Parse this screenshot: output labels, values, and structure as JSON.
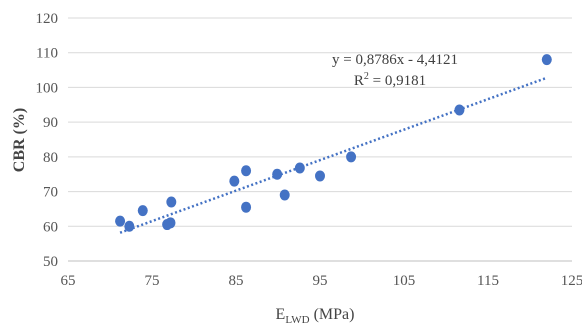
{
  "chart_data": {
    "type": "scatter",
    "title": "",
    "xlabel_main": "E",
    "xlabel_sub": "LWD",
    "xlabel_unit": " (MPa)",
    "ylabel": "CBR (%)",
    "xlim": [
      65,
      125
    ],
    "ylim": [
      50,
      120
    ],
    "xticks": [
      65,
      75,
      85,
      95,
      105,
      115,
      125
    ],
    "yticks": [
      50,
      60,
      70,
      80,
      90,
      100,
      110,
      120
    ],
    "grid": "horizontal",
    "marker_color": "#4472C4",
    "trendline_color": "#4472C4",
    "points": [
      {
        "x": 71.2,
        "y": 61.5
      },
      {
        "x": 72.3,
        "y": 60.0
      },
      {
        "x": 73.9,
        "y": 64.5
      },
      {
        "x": 76.8,
        "y": 60.5
      },
      {
        "x": 77.2,
        "y": 61.0
      },
      {
        "x": 77.3,
        "y": 67.0
      },
      {
        "x": 84.8,
        "y": 73.0
      },
      {
        "x": 86.2,
        "y": 76.0
      },
      {
        "x": 86.2,
        "y": 65.5
      },
      {
        "x": 89.9,
        "y": 75.0
      },
      {
        "x": 90.8,
        "y": 69.0
      },
      {
        "x": 92.6,
        "y": 76.8
      },
      {
        "x": 95.0,
        "y": 74.5
      },
      {
        "x": 98.7,
        "y": 80.0
      },
      {
        "x": 111.6,
        "y": 93.5
      },
      {
        "x": 122.0,
        "y": 108.0
      }
    ],
    "trendline": {
      "slope": 0.8786,
      "intercept": -4.4121,
      "x_range": [
        71.2,
        122.0
      ],
      "equation_label": "y = 0,8786x - 4,4121",
      "r2_prefix": "R",
      "r2_sup": "2",
      "r2_value": " = 0,9181"
    }
  }
}
